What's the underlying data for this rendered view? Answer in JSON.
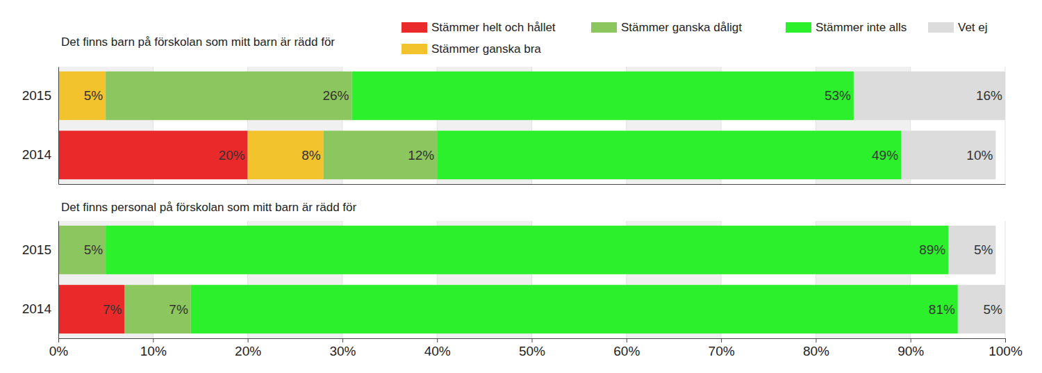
{
  "chart_data": [
    {
      "type": "bar",
      "orientation": "horizontal",
      "stacked": true,
      "data_labels": true,
      "grid": true,
      "legend": "top-right",
      "tick_labels": "y",
      "title": "Det finns barn på förskolan som mitt barn är rädd för",
      "categories": [
        "2015",
        "2014"
      ],
      "xlim": [
        0,
        100
      ],
      "xticks": [
        0,
        10,
        20,
        30,
        40,
        50,
        60,
        70,
        80,
        90,
        100
      ],
      "series": [
        {
          "name": "Stämmer helt och hållet",
          "color": "#ea2a2a",
          "values": [
            0,
            20
          ],
          "value_labels": [
            null,
            "20%"
          ]
        },
        {
          "name": "Stämmer ganska bra",
          "color": "#f2c32c",
          "values": [
            5,
            8
          ],
          "value_labels": [
            "5%",
            "8%"
          ]
        },
        {
          "name": "Stämmer ganska dåligt",
          "color": "#8cc65e",
          "values": [
            26,
            12
          ],
          "value_labels": [
            "26%",
            "12%"
          ]
        },
        {
          "name": "Stämmer inte alls",
          "color": "#2cf02c",
          "values": [
            53,
            49
          ],
          "value_labels": [
            "53%",
            "49%"
          ]
        },
        {
          "name": "Vet ej",
          "color": "#dcdcdc",
          "values": [
            16,
            10
          ],
          "value_labels": [
            "16%",
            "10%"
          ]
        }
      ]
    },
    {
      "type": "bar",
      "orientation": "horizontal",
      "stacked": true,
      "data_labels": true,
      "grid": true,
      "tick_labels": true,
      "title": "Det finns personal på förskolan som mitt barn är rädd för",
      "categories": [
        "2015",
        "2014"
      ],
      "xlim": [
        0,
        100
      ],
      "xticks": [
        {
          "value": 0,
          "label": "0%"
        },
        {
          "value": 10,
          "label": "10%"
        },
        {
          "value": 20,
          "label": "20%"
        },
        {
          "value": 30,
          "label": "30%"
        },
        {
          "value": 40,
          "label": "40%"
        },
        {
          "value": 50,
          "label": "50%"
        },
        {
          "value": 60,
          "label": "60%"
        },
        {
          "value": 70,
          "label": "70%"
        },
        {
          "value": 80,
          "label": "80%"
        },
        {
          "value": 90,
          "label": "90%"
        },
        {
          "value": 100,
          "label": "100%"
        }
      ],
      "series": [
        {
          "color": "#ea2a2a",
          "values": [
            0,
            7
          ],
          "value_labels": [
            null,
            "7%"
          ]
        },
        {
          "color": "#f2c32c",
          "values": [
            0,
            0
          ],
          "value_labels": [
            null,
            null
          ]
        },
        {
          "color": "#8cc65e",
          "values": [
            5,
            7
          ],
          "value_labels": [
            "5%",
            "7%"
          ]
        },
        {
          "color": "#2cf02c",
          "values": [
            89,
            81
          ],
          "value_labels": [
            "89%",
            "81%"
          ]
        },
        {
          "color": "#dcdcdc",
          "values": [
            5,
            5
          ],
          "value_labels": [
            "5%",
            "5%"
          ]
        }
      ]
    }
  ]
}
